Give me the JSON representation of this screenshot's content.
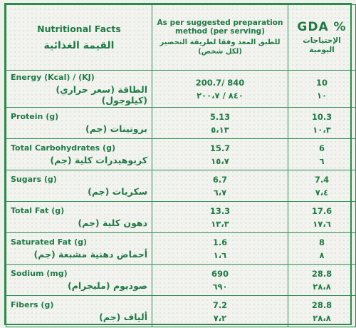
{
  "header": {
    "name_en": "Nutritional Facts",
    "name_ar": "القيمة الغذائية",
    "serving_en": "As per suggested preparation method (per serving)",
    "serving_ar": "للطبق المعد وفقا لطريقة التحضير (لكل شخص)",
    "gda_en": "GDA %",
    "gda_ar": "الإحتياجات اليومية"
  },
  "rows": [
    {
      "name_en": "Energy (Kcal) / (KJ)",
      "name_ar": "الطاقة (سعر حراري) (كيلوجول)",
      "value_en": "200.7/ 840",
      "value_ar": "٨٤٠ / ٢٠٠،٧",
      "gda_en": "10",
      "gda_ar": "١٠"
    },
    {
      "name_en": "Protein (g)",
      "name_ar": "بروتينات (جم)",
      "value_en": "5.13",
      "value_ar": "٥،١٣",
      "gda_en": "10.3",
      "gda_ar": "١٠،٣"
    },
    {
      "name_en": "Total Carbohydrates (g)",
      "name_ar": "كربوهيدرات كلية (جم)",
      "value_en": "15.7",
      "value_ar": "١٥،٧",
      "gda_en": "6",
      "gda_ar": "٦"
    },
    {
      "name_en": "Sugars (g)",
      "name_ar": "سكريات (جم)",
      "value_en": "6.7",
      "value_ar": "٦،٧",
      "gda_en": "7.4",
      "gda_ar": "٧،٤"
    },
    {
      "name_en": "Total Fat (g)",
      "name_ar": "دهون كلية (جم)",
      "value_en": "13.3",
      "value_ar": "١٣،٣",
      "gda_en": "17.6",
      "gda_ar": "١٧،٦"
    },
    {
      "name_en": "Saturated Fat (g)",
      "name_ar": "أحماض دهنية مشبعة (جم)",
      "value_en": "1.6",
      "value_ar": "١،٦",
      "gda_en": "8",
      "gda_ar": "٨"
    },
    {
      "name_en": "Sodium (mg)",
      "name_ar": "صوديوم (مليجرام)",
      "value_en": "690",
      "value_ar": "٦٩٠",
      "gda_en": "28.8",
      "gda_ar": "٢٨،٨"
    },
    {
      "name_en": "Fibers (g)",
      "name_ar": "ألياف (جم)",
      "value_en": "7.2",
      "value_ar": "٧،٢",
      "gda_en": "28.8",
      "gda_ar": "٢٨،٨"
    }
  ]
}
